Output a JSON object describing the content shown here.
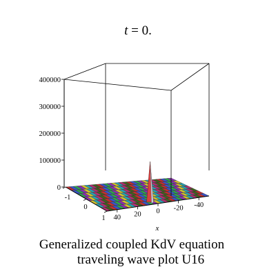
{
  "chart_data": {
    "type": "surface3d",
    "title_var": "t",
    "title_eq": " = 0.",
    "z_ticks": [
      "400000",
      "300000",
      "200000",
      "100000",
      "0"
    ],
    "y_ticks": [
      "-1",
      "0",
      "1"
    ],
    "x_ticks": [
      "40",
      "20",
      "0",
      "-20",
      "-40"
    ],
    "xlabel": "x",
    "zlim": [
      0,
      400000
    ],
    "ylim": [
      -1,
      1
    ],
    "xlim": [
      -50,
      50
    ],
    "peak": {
      "x": 0,
      "y": 0.6,
      "z": 140000
    }
  },
  "caption": {
    "line1": "Generalized coupled KdV equation",
    "line2": "traveling wave plot U16"
  }
}
